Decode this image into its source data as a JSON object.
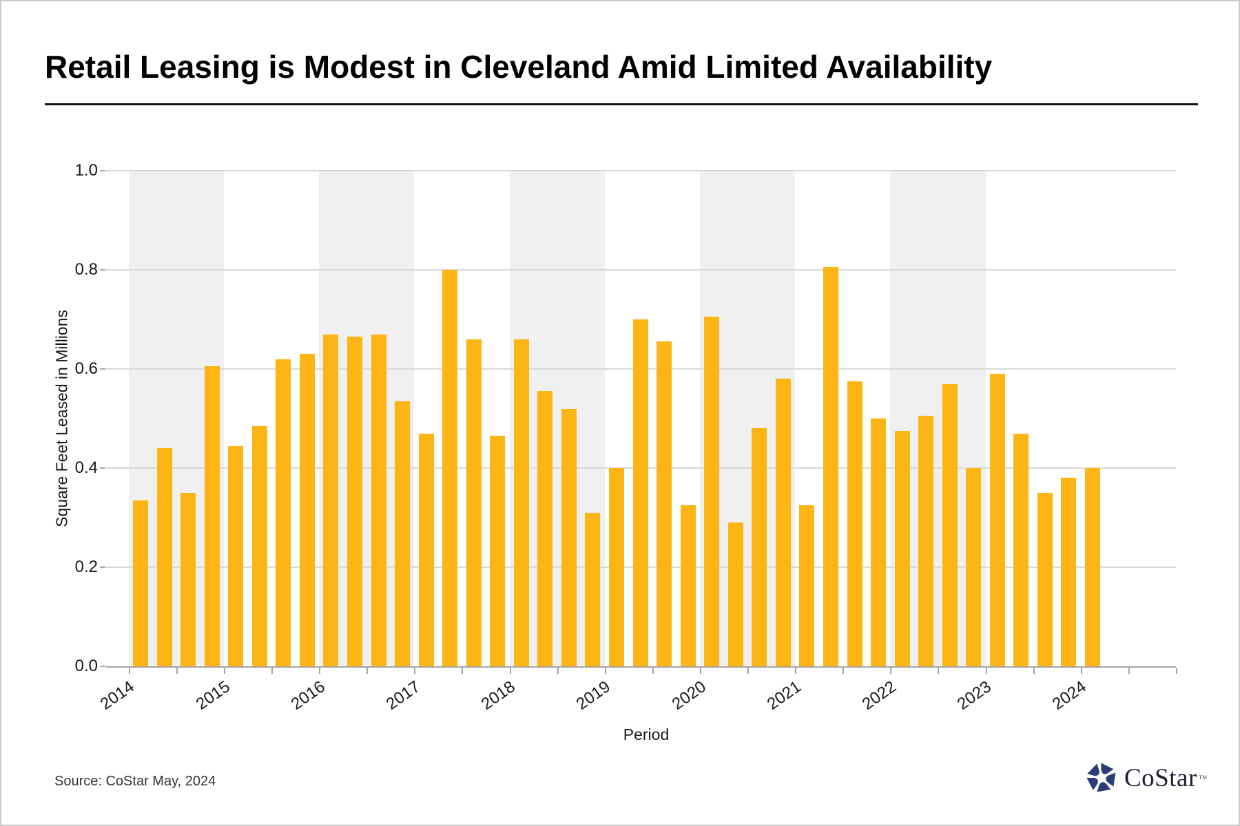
{
  "page": {
    "title": "Retail Leasing is Modest in Cleveland Amid Limited Availability"
  },
  "chart_data": {
    "type": "bar",
    "title": "Retail Leasing is Modest in Cleveland Amid Limited Availability",
    "xlabel": "Period",
    "ylabel": "Square Feet Leased in Millions",
    "ylim": [
      0.0,
      1.0
    ],
    "yticks": [
      0.0,
      0.2,
      0.4,
      0.6,
      0.8,
      1.0
    ],
    "ytick_labels": [
      "0.0",
      "0.2",
      "0.4",
      "0.6",
      "0.8",
      "1.0"
    ],
    "grid": "horizontal",
    "legend": "none",
    "bar_color": "#FCB514",
    "year_band_color": "#F0F0F0",
    "gridline_color": "#D9D9D9",
    "axis_color": "#A6A6A6",
    "shaded_years": [
      2014,
      2016,
      2018,
      2020,
      2022
    ],
    "year_labels": [
      "2014",
      "2015",
      "2016",
      "2017",
      "2018",
      "2019",
      "2020",
      "2021",
      "2022",
      "2023",
      "2024"
    ],
    "x": [
      "2014 Q1",
      "2014 Q2",
      "2014 Q3",
      "2014 Q4",
      "2015 Q1",
      "2015 Q2",
      "2015 Q3",
      "2015 Q4",
      "2016 Q1",
      "2016 Q2",
      "2016 Q3",
      "2016 Q4",
      "2017 Q1",
      "2017 Q2",
      "2017 Q3",
      "2017 Q4",
      "2018 Q1",
      "2018 Q2",
      "2018 Q3",
      "2018 Q4",
      "2019 Q1",
      "2019 Q2",
      "2019 Q3",
      "2019 Q4",
      "2020 Q1",
      "2020 Q2",
      "2020 Q3",
      "2020 Q4",
      "2021 Q1",
      "2021 Q2",
      "2021 Q3",
      "2021 Q4",
      "2022 Q1",
      "2022 Q2",
      "2022 Q3",
      "2022 Q4",
      "2023 Q1",
      "2023 Q2",
      "2023 Q3",
      "2023 Q4",
      "2024 Q1"
    ],
    "values": [
      0.335,
      0.44,
      0.35,
      0.605,
      0.445,
      0.485,
      0.62,
      0.63,
      0.67,
      0.665,
      0.67,
      0.535,
      0.47,
      0.8,
      0.66,
      0.465,
      0.66,
      0.555,
      0.52,
      0.31,
      0.4,
      0.7,
      0.655,
      0.325,
      0.705,
      0.29,
      0.48,
      0.58,
      0.325,
      0.805,
      0.575,
      0.5,
      0.475,
      0.505,
      0.57,
      0.4,
      0.59,
      0.47,
      0.35,
      0.38,
      0.4
    ]
  },
  "footer": {
    "source": "Source: CoStar May, 2024",
    "logo_text": "CoStar",
    "logo_tm": "™",
    "logo_icon_color": "#2B3E78"
  }
}
